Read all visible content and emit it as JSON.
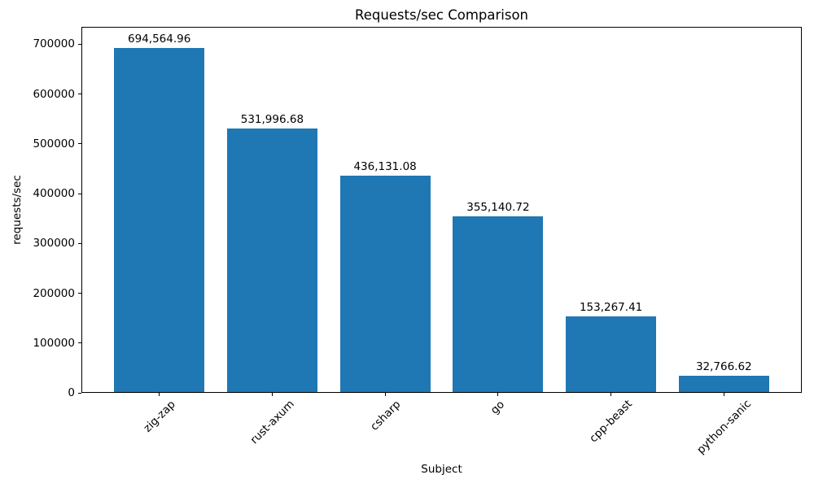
{
  "chart_data": {
    "type": "bar",
    "title": "Requests/sec Comparison",
    "xlabel": "Subject",
    "ylabel": "requests/sec",
    "categories": [
      "zig-zap",
      "rust-axum",
      "csharp",
      "go",
      "cpp-beast",
      "python-sanic"
    ],
    "values": [
      694564.96,
      531996.68,
      436131.08,
      355140.72,
      153267.41,
      32766.62
    ],
    "value_labels": [
      "694,564.96",
      "531,996.68",
      "436,131.08",
      "355,140.72",
      "153,267.41",
      "32,766.62"
    ],
    "yticks": [
      0,
      100000,
      200000,
      300000,
      400000,
      500000,
      600000,
      700000
    ],
    "ytick_labels": [
      "0",
      "100000",
      "200000",
      "300000",
      "400000",
      "500000",
      "600000",
      "700000"
    ],
    "ylim": [
      0,
      735000
    ],
    "bar_color": "#1f77b4",
    "grid": false,
    "legend": null,
    "x_tick_rotation_deg": 45
  }
}
